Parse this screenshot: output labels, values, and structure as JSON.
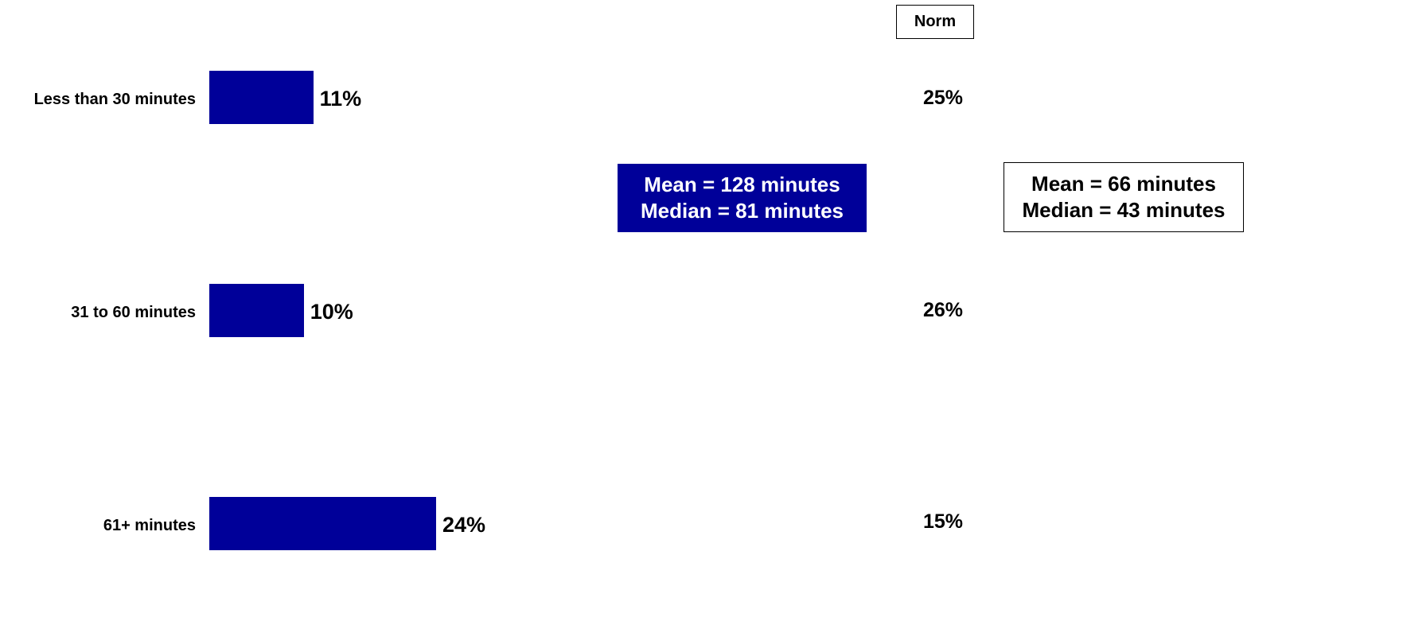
{
  "chart_data": {
    "type": "bar",
    "orientation": "horizontal",
    "categories": [
      "Less than 30 minutes",
      "31 to 60 minutes",
      "61+ minutes"
    ],
    "values": [
      11,
      10,
      24
    ],
    "value_labels": [
      "11%",
      "10%",
      "24%"
    ],
    "bar_color": "#000099",
    "norm": {
      "header": "Norm",
      "values": [
        25,
        26,
        15
      ],
      "value_labels": [
        "25%",
        "26%",
        "15%"
      ]
    },
    "stats": {
      "mean": "Mean = 128 minutes",
      "median": "Median = 81 minutes"
    },
    "norm_stats": {
      "mean": "Mean = 66 minutes",
      "median": "Median = 43 minutes"
    },
    "accent_color": "#000099"
  }
}
